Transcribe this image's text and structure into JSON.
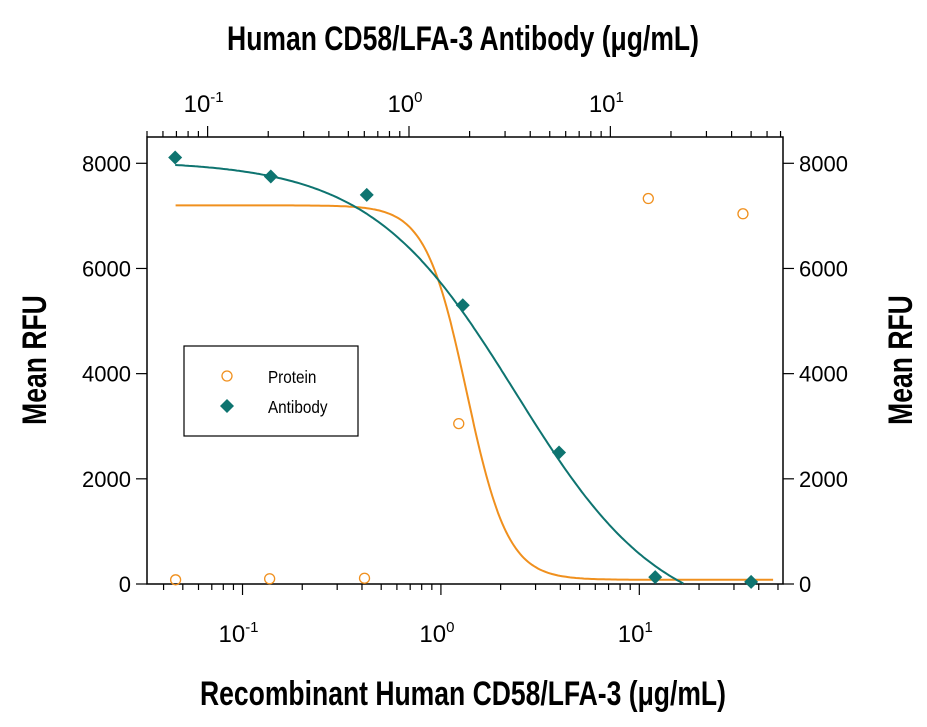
{
  "chart_data": {
    "type": "scatter",
    "title": "",
    "top_axis": {
      "label": "Human CD58/LFA-3 Antibody (μg/mL)",
      "scale": "log",
      "range": [
        0.05,
        72
      ],
      "ticks": [
        {
          "base": "10",
          "exp": "-1",
          "value": 0.1
        },
        {
          "base": "10",
          "exp": "0",
          "value": 1
        },
        {
          "base": "10",
          "exp": "1",
          "value": 10
        }
      ]
    },
    "bottom_axis": {
      "label": "Recombinant Human CD58/LFA-3 (μg/mL)",
      "scale": "log",
      "range": [
        0.033,
        53
      ],
      "ticks": [
        {
          "base": "10",
          "exp": "-1",
          "value": 0.1
        },
        {
          "base": "10",
          "exp": "0",
          "value": 1
        },
        {
          "base": "10",
          "exp": "1",
          "value": 10
        }
      ]
    },
    "left_axis": {
      "label": "Mean RFU",
      "range": [
        0,
        8500
      ],
      "ticks": [
        "0",
        "2000",
        "4000",
        "6000",
        "8000"
      ]
    },
    "right_axis": {
      "label": "Mean RFU",
      "range": [
        0,
        8500
      ],
      "ticks": [
        "0",
        "2000",
        "4000",
        "6000",
        "8000"
      ]
    },
    "grid": false,
    "legend": {
      "placement": "center-left",
      "entries": [
        "Protein",
        "Antibody"
      ]
    },
    "series": [
      {
        "name": "Protein",
        "axis": "bottom",
        "marker": "open-circle",
        "color": "#f0901e",
        "x": [
          0.046,
          0.137,
          0.412,
          1.23,
          11.1,
          33.3
        ],
        "y": [
          80,
          100,
          110,
          3050,
          7330,
          7040
        ],
        "fit": {
          "bottom": 80,
          "top": 7200,
          "ec50": 1.35,
          "hill": 4.2
        }
      },
      {
        "name": "Antibody",
        "axis": "top",
        "marker": "filled-diamond",
        "color": "#0e7470",
        "x": [
          0.069,
          0.206,
          0.617,
          1.85,
          5.56,
          16.7,
          50
        ],
        "y": [
          8110,
          7750,
          7400,
          5300,
          2500,
          130,
          40
        ],
        "fit": {
          "bottom": -800,
          "top": 8050,
          "ec50": 3.4,
          "hill": 1.2
        }
      }
    ]
  }
}
